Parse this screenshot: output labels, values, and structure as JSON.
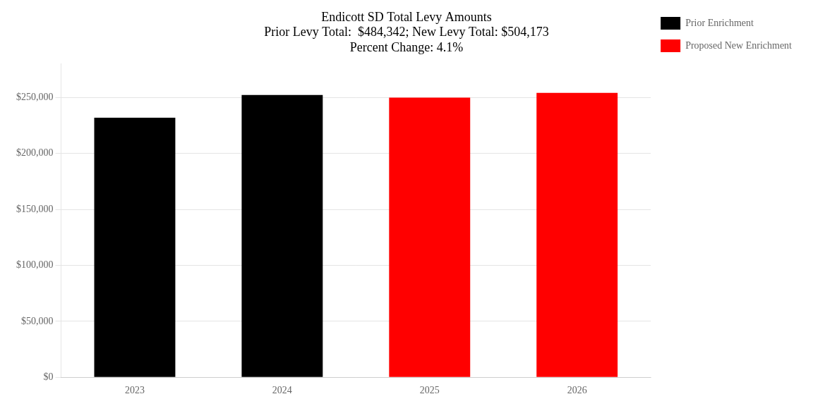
{
  "chart_data": {
    "type": "bar",
    "title": "Endicott SD Total Levy Amounts\nPrior Levy Total:  $484,342; New Levy Total: $504,173\nPercent Change: 4.1%",
    "categories": [
      "2023",
      "2024",
      "2025",
      "2026"
    ],
    "series": [
      {
        "name": "Prior Enrichment",
        "color": "#000000",
        "values": [
          232000,
          252342,
          null,
          null
        ]
      },
      {
        "name": "Proposed New Enrichment",
        "color": "#ff0000",
        "values": [
          null,
          null,
          250000,
          254173
        ]
      }
    ],
    "ylim": [
      0,
      280000
    ],
    "yticks": [
      {
        "value": 0,
        "label": "$0"
      },
      {
        "value": 50000,
        "label": "$50,000"
      },
      {
        "value": 100000,
        "label": "$100,000"
      },
      {
        "value": 150000,
        "label": "$150,000"
      },
      {
        "value": 200000,
        "label": "$200,000"
      },
      {
        "value": 250000,
        "label": "$250,000"
      }
    ],
    "grid": true,
    "legend": "right"
  }
}
